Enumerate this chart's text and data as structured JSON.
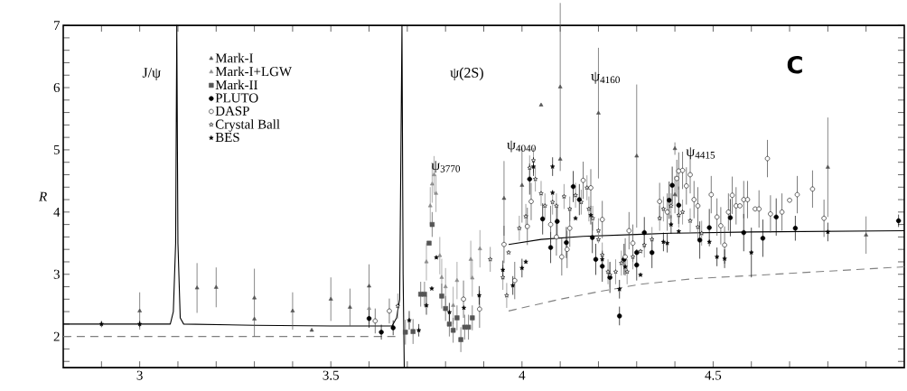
{
  "chart_data": {
    "type": "scatter",
    "title": "C",
    "ylabel": "R",
    "xlim": [
      2.8,
      5.0
    ],
    "ylim": [
      1.5,
      7
    ],
    "xticks": [
      {
        "value": 2.9,
        "label": null
      },
      3,
      {
        "value": 3.1,
        "label": null
      },
      {
        "value": 3.2,
        "label": null
      },
      {
        "value": 3.3,
        "label": null
      },
      {
        "value": 3.4,
        "label": null
      },
      3.5,
      {
        "value": 3.6,
        "label": null
      },
      {
        "value": 3.7,
        "label": null
      },
      {
        "value": 3.8,
        "label": null
      },
      {
        "value": 3.9,
        "label": null
      },
      4,
      {
        "value": 4.1,
        "label": null
      },
      {
        "value": 4.2,
        "label": null
      },
      {
        "value": 4.3,
        "label": null
      },
      {
        "value": 4.4,
        "label": null
      },
      4.5,
      {
        "value": 4.6,
        "label": null
      },
      {
        "value": 4.7,
        "label": null
      },
      {
        "value": 4.8,
        "label": null
      },
      {
        "value": 4.9,
        "label": null
      }
    ],
    "yticks": [
      {
        "value": 1.6,
        "label": null
      },
      {
        "value": 1.8,
        "label": null
      },
      2,
      {
        "value": 2.2,
        "label": null
      },
      {
        "value": 2.4,
        "label": null
      },
      {
        "value": 2.6,
        "label": null
      },
      {
        "value": 2.8,
        "label": null
      },
      3,
      {
        "value": 3.2,
        "label": null
      },
      {
        "value": 3.4,
        "label": null
      },
      {
        "value": 3.6,
        "label": null
      },
      {
        "value": 3.8,
        "label": null
      },
      4,
      {
        "value": 4.2,
        "label": null
      },
      {
        "value": 4.4,
        "label": null
      },
      {
        "value": 4.6,
        "label": null
      },
      {
        "value": 4.8,
        "label": null
      },
      5,
      {
        "value": 5.2,
        "label": null
      },
      {
        "value": 5.4,
        "label": null
      },
      {
        "value": 5.6,
        "label": null
      },
      {
        "value": 5.8,
        "label": null
      },
      6,
      {
        "value": 6.2,
        "label": null
      },
      {
        "value": 6.4,
        "label": null
      },
      {
        "value": 6.6,
        "label": null
      },
      {
        "value": 6.8,
        "label": null
      },
      7
    ],
    "legend": "top left",
    "annotations": [
      "J/ψ",
      "ψ(2S)",
      "ψ$_{3770}$",
      "ψ$_{4040}$",
      "ψ$_{4160}$",
      "ψ$_{4415}$"
    ],
    "series": [
      {
        "type": "line",
        "color": "#000000",
        "line_style": "solid",
        "x": [
          2.8,
          3.08,
          3.088,
          3.094,
          3.097,
          3.1,
          3.106,
          3.115,
          3.3,
          3.5,
          3.66,
          3.672,
          3.68,
          3.686,
          3.689,
          3.692,
          3.8,
          3.965,
          4.05,
          4.16,
          4.3,
          4.39,
          4.6,
          5.0
        ],
        "values": [
          2.2,
          2.2,
          2.4,
          3.5,
          7,
          3.5,
          2.3,
          2.2,
          2.18,
          2.17,
          2.17,
          2.3,
          2.6,
          7,
          3,
          1.5,
          null,
          3.48,
          3.56,
          3.61,
          3.64,
          3.66,
          3.68,
          3.7
        ]
      },
      {
        "type": "line",
        "color": "#808080",
        "line_style": "dashed",
        "x": [
          2.8,
          3.67,
          3.8,
          3.965,
          4.1,
          4.2,
          4.31,
          4.45,
          4.63,
          4.8,
          5.0
        ],
        "values": [
          2.0,
          2.0,
          null,
          2.41,
          2.6,
          2.72,
          2.84,
          2.93,
          2.99,
          3.05,
          3.12
        ]
      },
      {
        "name": "Mark-I",
        "marker": "triangle",
        "color": "#555555",
        "x": [
          3.0,
          3.15,
          3.2,
          3.3,
          3.3,
          3.4,
          3.45,
          3.5,
          3.55,
          3.6,
          3.953,
          4.0,
          4.05,
          4.1,
          4.1,
          4.2,
          4.3,
          4.4,
          4.4,
          4.8,
          4.9
        ],
        "values": [
          2.41,
          2.78,
          2.79,
          2.28,
          2.62,
          2.41,
          2.1,
          2.6,
          2.47,
          2.81,
          4.22,
          4.43,
          5.72,
          6.01,
          4.85,
          5.59,
          4.9,
          4.28,
          5.02,
          4.72,
          3.63
        ],
        "errors": [
          0.3,
          0.4,
          0.32,
          [
            2.0,
            3.09
          ],
          null,
          0.3,
          null,
          0.35,
          0.3,
          0.35,
          0.6,
          0.6,
          null,
          1.35,
          null,
          1.05,
          1.15,
          0.3,
          0.1,
          0.8,
          0.3
        ]
      },
      {
        "name": "Mark-I+LGW",
        "marker": "triangle",
        "color": "#8c8c8c",
        "x": [
          3.6,
          3.75,
          3.76,
          3.765,
          3.77,
          3.775,
          3.785,
          3.79,
          3.8,
          3.82,
          3.83,
          3.866,
          3.87,
          3.89
        ],
        "values": [
          2.45,
          3.2,
          4.1,
          4.45,
          4.6,
          4.3,
          3.3,
          2.95,
          2.8,
          2.5,
          2.9,
          3.24,
          2.94,
          3.41
        ],
        "errors": [
          0.25,
          0.3,
          0.3,
          0.3,
          0.3,
          0.3,
          0.3,
          0.3,
          0.3,
          0.3,
          0.3,
          0.3,
          0.3,
          0.3
        ]
      },
      {
        "name": "Mark-II",
        "marker": "square",
        "color": "#555555",
        "x": [
          3.695,
          3.715,
          3.735,
          3.745,
          3.757,
          3.765,
          3.79,
          3.8,
          3.81,
          3.82,
          3.83,
          3.84,
          3.85,
          3.86,
          3.87
        ],
        "values": [
          2.07,
          2.08,
          2.68,
          2.68,
          3.5,
          3.8,
          2.65,
          2.45,
          2.2,
          2.1,
          2.3,
          1.95,
          2.15,
          2.15,
          2.3
        ],
        "errors": [
          0.2,
          0.2,
          0.2,
          0.2,
          null,
          0.2,
          0.2,
          0.2,
          0.2,
          0.2,
          0.2,
          0.2,
          0.2,
          0.2,
          0.2
        ]
      },
      {
        "name": "PLUTO",
        "marker": "circle",
        "color": "#000000",
        "x": [
          3.6,
          3.632,
          3.663,
          4.02,
          4.054,
          4.075,
          4.092,
          4.116,
          4.134,
          4.15,
          4.184,
          4.193,
          4.21,
          4.23,
          4.255,
          4.267,
          4.3,
          4.3,
          4.32,
          4.34,
          4.385,
          4.393,
          4.41,
          4.465,
          4.49,
          4.545,
          4.58,
          4.63,
          4.665,
          4.715,
          4.985
        ],
        "values": [
          2.29,
          2.07,
          2.14,
          4.53,
          3.89,
          3.43,
          3.85,
          3.51,
          4.41,
          4.2,
          3.59,
          3.24,
          3.13,
          2.95,
          2.33,
          3.24,
          3.15,
          3.35,
          3.67,
          3.35,
          4.19,
          4.43,
          4.11,
          3.55,
          3.75,
          3.91,
          3.67,
          3.58,
          3.92,
          3.74,
          3.86
        ],
        "errors": [
          0.15,
          0.12,
          0.12,
          0.25,
          0.25,
          0.25,
          0.25,
          0.25,
          0.25,
          0.25,
          0.25,
          0.25,
          0.25,
          0.25,
          0.15,
          0.25,
          0.25,
          null,
          0.25,
          0.25,
          0.3,
          0.3,
          0.3,
          0.3,
          0.3,
          0.3,
          0.3,
          0.3,
          0.3,
          0.2,
          0.1
        ]
      },
      {
        "name": "DASP",
        "marker": "circle",
        "color": "#ffffff",
        "x": [
          3.616,
          3.653,
          3.847,
          3.889,
          3.953,
          3.981,
          4.014,
          4.024,
          4.075,
          4.09,
          4.104,
          4.118,
          4.125,
          4.16,
          4.18,
          4.21,
          4.27,
          4.28,
          4.29,
          4.36,
          4.38,
          4.405,
          4.41,
          4.42,
          4.43,
          4.44,
          4.45,
          4.46,
          4.495,
          4.51,
          4.52,
          4.53,
          4.54,
          4.55,
          4.56,
          4.57,
          4.58,
          4.59,
          4.61,
          4.62,
          4.642,
          4.65,
          4.68,
          4.7,
          4.72,
          4.76,
          4.79
        ],
        "values": [
          2.25,
          2.41,
          2.6,
          2.44,
          3.48,
          2.9,
          3.77,
          4.17,
          3.8,
          3.6,
          3.28,
          3.4,
          3.74,
          4.51,
          4.39,
          3.88,
          3.28,
          3.7,
          3.5,
          4.17,
          4.0,
          4.54,
          4.66,
          4.67,
          4.42,
          4.6,
          4.2,
          4.1,
          4.28,
          3.92,
          3.78,
          3.47,
          4.0,
          4.27,
          4.1,
          4.1,
          4.2,
          4.2,
          4.05,
          4.05,
          4.86,
          3.97,
          4.0,
          4.19,
          4.28,
          4.37,
          3.9
        ],
        "errors": [
          0.2,
          0.2,
          0.3,
          0.3,
          0.3,
          0.3,
          0.3,
          0.3,
          0.3,
          0.3,
          0.3,
          0.3,
          0.3,
          0.3,
          0.3,
          0.3,
          0.3,
          0.3,
          0.3,
          0.3,
          0.3,
          0.3,
          0.3,
          0.3,
          0.3,
          0.3,
          0.3,
          0.3,
          0.3,
          0.3,
          0.3,
          0.3,
          0.3,
          0.3,
          0.3,
          null,
          0.3,
          0.3,
          null,
          0.3,
          0.3,
          0.3,
          0.3,
          null,
          0.3,
          0.3,
          0.3
        ]
      },
      {
        "name": "Crystal Ball",
        "marker": "star",
        "color": "#ffffff",
        "x": [
          3.675,
          3.917,
          3.95,
          3.96,
          3.965,
          3.993,
          4.01,
          4.02,
          4.03,
          4.035,
          4.05,
          4.06,
          4.08,
          4.09,
          4.11,
          4.125,
          4.14,
          4.155,
          4.17,
          4.175,
          4.185,
          4.2,
          4.2,
          4.21,
          4.225,
          4.23,
          4.245,
          4.26,
          4.275,
          4.29,
          4.31,
          4.32,
          4.34,
          4.36,
          4.37,
          4.39,
          4.41,
          4.42,
          4.44,
          4.46,
          4.47
        ],
        "values": [
          2.49,
          3.24,
          2.95,
          2.66,
          3.35,
          3.74,
          3.93,
          4.71,
          4.83,
          4.53,
          4.3,
          4.1,
          4.16,
          4.1,
          4.25,
          4.05,
          4.27,
          4.16,
          4.39,
          4.05,
          3.9,
          3.7,
          3.56,
          3.31,
          3.04,
          2.99,
          3.04,
          3.18,
          3.04,
          3.28,
          3.37,
          3.47,
          3.56,
          3.9,
          4.05,
          4.1,
          3.95,
          4.0,
          3.86,
          3.76,
          3.66
        ],
        "errors": [
          0.2,
          0.2,
          0.2,
          0.2,
          null,
          0.2,
          0.2,
          0.2,
          0.2,
          0.2,
          0.2,
          0.2,
          0.2,
          0.2,
          0.2,
          0.2,
          0.2,
          0.2,
          0.2,
          0.2,
          0.2,
          0.2,
          null,
          0.2,
          0.2,
          0.2,
          0.2,
          0.2,
          0.2,
          0.2,
          null,
          0.2,
          0.2,
          0.2,
          0.2,
          0.2,
          0.2,
          0.2,
          0.2,
          0.2,
          0.2
        ]
      },
      {
        "name": "BES",
        "marker": "star",
        "color": "#000000",
        "x": [
          2.9,
          3.0,
          3.705,
          3.73,
          3.75,
          3.764,
          3.776,
          3.81,
          3.848,
          3.888,
          3.95,
          3.976,
          4.0,
          4.01,
          4.03,
          4.08,
          4.08,
          4.14,
          4.18,
          4.21,
          4.255,
          4.27,
          4.31,
          4.37,
          4.38,
          4.39,
          4.41,
          4.49,
          4.51,
          4.53,
          4.6,
          4.8
        ],
        "values": [
          2.2,
          2.2,
          2.26,
          2.1,
          2.5,
          2.77,
          3.27,
          2.39,
          2.46,
          2.66,
          3.07,
          2.82,
          3.1,
          3.2,
          4.73,
          4.73,
          4.31,
          3.9,
          3.95,
          3.24,
          2.76,
          3.12,
          2.99,
          3.52,
          3.5,
          3.8,
          3.69,
          3.52,
          3.28,
          3.25,
          3.35,
          3.68
        ],
        "errors": [
          0.05,
          0.05,
          0.15,
          0.1,
          0.15,
          null,
          null,
          0.15,
          null,
          0.15,
          0.15,
          0.15,
          0.15,
          null,
          0.15,
          0.15,
          null,
          null,
          0.15,
          null,
          0.15,
          null,
          null,
          0.15,
          0.15,
          0.15,
          null,
          null,
          0.15,
          0.15,
          0.4,
          0.15
        ]
      }
    ]
  }
}
